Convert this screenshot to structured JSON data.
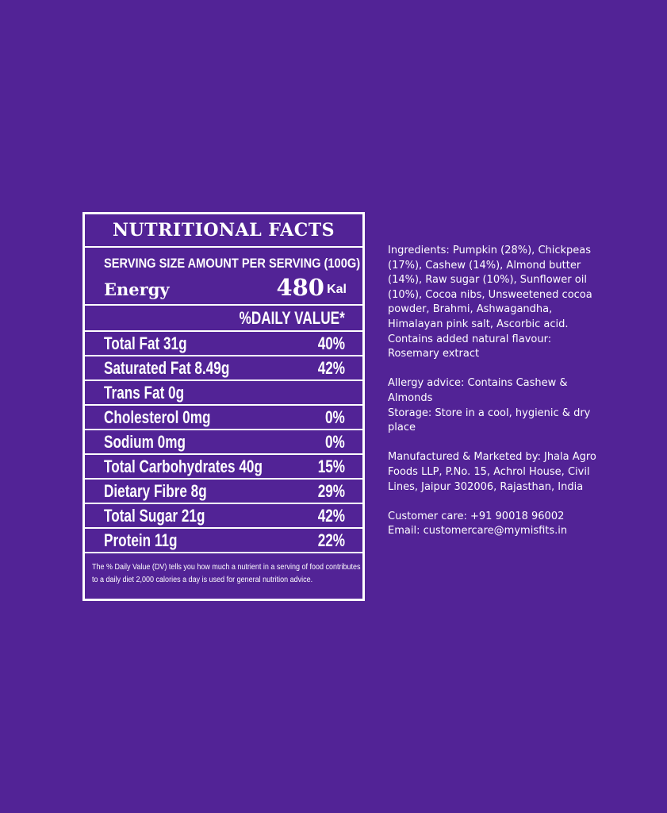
{
  "panel": {
    "title": "NUTRITIONAL FACTS",
    "serving_line": "SERVING SIZE AMOUNT PER SERVING (100G)",
    "energy_label": "Energy",
    "energy_value": "480",
    "energy_unit": "Kal",
    "daily_value_header": "%DAILY VALUE*",
    "rows": [
      {
        "name": "Total Fat 31g",
        "pct": "40%"
      },
      {
        "name": "Saturated Fat 8.49g",
        "pct": "42%"
      },
      {
        "name": "Trans Fat 0g",
        "pct": ""
      },
      {
        "name": "Cholesterol 0mg",
        "pct": "0%"
      },
      {
        "name": "Sodium 0mg",
        "pct": "0%"
      },
      {
        "name": "Total Carbohydrates 40g",
        "pct": "15%"
      },
      {
        "name": "Dietary Fibre 8g",
        "pct": "29%"
      },
      {
        "name": "Total Sugar 21g",
        "pct": "42%"
      },
      {
        "name": "Protein 11g",
        "pct": "22%"
      }
    ],
    "footnote": "The % Daily Value (DV) tells you how much a nutrient in a serving of food contributes to a daily diet 2,000 calories a day is used for general nutrition advice."
  },
  "info": {
    "ingredients": "Ingredients: Pumpkin (28%), Chickpeas (17%), Cashew (14%), Almond butter (14%), Raw sugar (10%), Sunflower oil (10%), Cocoa nibs, Unsweetened cocoa powder, Brahmi, Ashwagandha, Himalayan pink salt, Ascorbic acid.",
    "flavour": "Contains added natural flavour: Rosemary extract",
    "allergy": "Allergy advice: Contains Cashew & Almonds",
    "storage": "Storage: Store in a cool, hygienic & dry place",
    "manufacturer": "Manufactured & Marketed by: Jhala Agro Foods LLP, P.No. 15, Achrol House, Civil Lines, Jaipur 302006, Rajasthan, India",
    "care": "Customer care: +91 90018 96002",
    "email": "Email: customercare@mymisfits.in"
  },
  "colors": {
    "background": "#522396",
    "text": "#ffffff"
  }
}
